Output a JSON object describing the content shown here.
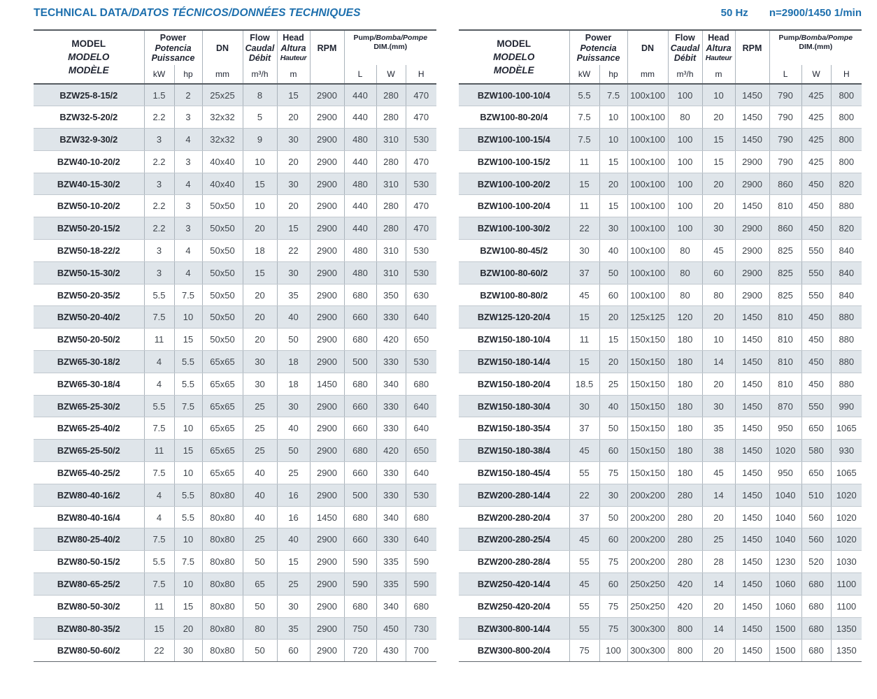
{
  "page": {
    "title_main": "TECHNICAL DATA",
    "title_alt": "/DATOS TÉCNICOS/DONNÉES TECHNIQUES",
    "frequency": "50 Hz",
    "speed": "n=2900/1450 1/min"
  },
  "colors": {
    "accent_blue": "#1d6fad",
    "row_shade": "#dfe5ea",
    "header_text": "#212633",
    "value_text": "#3e444b",
    "model_text": "#23272f",
    "grid_line": "#aab3bb",
    "row_line": "#c1c8cf",
    "heavy_line": "#565c62"
  },
  "columns": {
    "model": [
      "MODEL",
      "MODELO",
      "MODÈLE"
    ],
    "power": [
      "Power",
      "Potencia",
      "Puissance"
    ],
    "power_units": [
      "kW",
      "hp"
    ],
    "dn": "DN",
    "dn_unit": "mm",
    "flow": [
      "Flow",
      "Caudal",
      "Débit"
    ],
    "flow_unit": "m³/h",
    "head": [
      "Head",
      "Altura",
      "Hauteur"
    ],
    "head_unit": "m",
    "rpm": "RPM",
    "dim_line1_main": "Pump",
    "dim_line1_alt": "/Bomba/Pompe",
    "dim_line2": "DIM.(mm)",
    "dim_units": [
      "L",
      "W",
      "H"
    ]
  },
  "tables": [
    {
      "name": "left",
      "rows": [
        [
          "BZW25-8-15/2",
          "1.5",
          "2",
          "25x25",
          "8",
          "15",
          "2900",
          "440",
          "280",
          "470"
        ],
        [
          "BZW32-5-20/2",
          "2.2",
          "3",
          "32x32",
          "5",
          "20",
          "2900",
          "440",
          "280",
          "470"
        ],
        [
          "BZW32-9-30/2",
          "3",
          "4",
          "32x32",
          "9",
          "30",
          "2900",
          "480",
          "310",
          "530"
        ],
        [
          "BZW40-10-20/2",
          "2.2",
          "3",
          "40x40",
          "10",
          "20",
          "2900",
          "440",
          "280",
          "470"
        ],
        [
          "BZW40-15-30/2",
          "3",
          "4",
          "40x40",
          "15",
          "30",
          "2900",
          "480",
          "310",
          "530"
        ],
        [
          "BZW50-10-20/2",
          "2.2",
          "3",
          "50x50",
          "10",
          "20",
          "2900",
          "440",
          "280",
          "470"
        ],
        [
          "BZW50-20-15/2",
          "2.2",
          "3",
          "50x50",
          "20",
          "15",
          "2900",
          "440",
          "280",
          "470"
        ],
        [
          "BZW50-18-22/2",
          "3",
          "4",
          "50x50",
          "18",
          "22",
          "2900",
          "480",
          "310",
          "530"
        ],
        [
          "BZW50-15-30/2",
          "3",
          "4",
          "50x50",
          "15",
          "30",
          "2900",
          "480",
          "310",
          "530"
        ],
        [
          "BZW50-20-35/2",
          "5.5",
          "7.5",
          "50x50",
          "20",
          "35",
          "2900",
          "680",
          "350",
          "630"
        ],
        [
          "BZW50-20-40/2",
          "7.5",
          "10",
          "50x50",
          "20",
          "40",
          "2900",
          "660",
          "330",
          "640"
        ],
        [
          "BZW50-20-50/2",
          "11",
          "15",
          "50x50",
          "20",
          "50",
          "2900",
          "680",
          "420",
          "650"
        ],
        [
          "BZW65-30-18/2",
          "4",
          "5.5",
          "65x65",
          "30",
          "18",
          "2900",
          "500",
          "330",
          "530"
        ],
        [
          "BZW65-30-18/4",
          "4",
          "5.5",
          "65x65",
          "30",
          "18",
          "1450",
          "680",
          "340",
          "680"
        ],
        [
          "BZW65-25-30/2",
          "5.5",
          "7.5",
          "65x65",
          "25",
          "30",
          "2900",
          "660",
          "330",
          "640"
        ],
        [
          "BZW65-25-40/2",
          "7.5",
          "10",
          "65x65",
          "25",
          "40",
          "2900",
          "660",
          "330",
          "640"
        ],
        [
          "BZW65-25-50/2",
          "11",
          "15",
          "65x65",
          "25",
          "50",
          "2900",
          "680",
          "420",
          "650"
        ],
        [
          "BZW65-40-25/2",
          "7.5",
          "10",
          "65x65",
          "40",
          "25",
          "2900",
          "660",
          "330",
          "640"
        ],
        [
          "BZW80-40-16/2",
          "4",
          "5.5",
          "80x80",
          "40",
          "16",
          "2900",
          "500",
          "330",
          "530"
        ],
        [
          "BZW80-40-16/4",
          "4",
          "5.5",
          "80x80",
          "40",
          "16",
          "1450",
          "680",
          "340",
          "680"
        ],
        [
          "BZW80-25-40/2",
          "7.5",
          "10",
          "80x80",
          "25",
          "40",
          "2900",
          "660",
          "330",
          "640"
        ],
        [
          "BZW80-50-15/2",
          "5.5",
          "7.5",
          "80x80",
          "50",
          "15",
          "2900",
          "590",
          "335",
          "590"
        ],
        [
          "BZW80-65-25/2",
          "7.5",
          "10",
          "80x80",
          "65",
          "25",
          "2900",
          "590",
          "335",
          "590"
        ],
        [
          "BZW80-50-30/2",
          "11",
          "15",
          "80x80",
          "50",
          "30",
          "2900",
          "680",
          "340",
          "680"
        ],
        [
          "BZW80-80-35/2",
          "15",
          "20",
          "80x80",
          "80",
          "35",
          "2900",
          "750",
          "450",
          "730"
        ],
        [
          "BZW80-50-60/2",
          "22",
          "30",
          "80x80",
          "50",
          "60",
          "2900",
          "720",
          "430",
          "700"
        ]
      ]
    },
    {
      "name": "right",
      "rows": [
        [
          "BZW100-100-10/4",
          "5.5",
          "7.5",
          "100x100",
          "100",
          "10",
          "1450",
          "790",
          "425",
          "800"
        ],
        [
          "BZW100-80-20/4",
          "7.5",
          "10",
          "100x100",
          "80",
          "20",
          "1450",
          "790",
          "425",
          "800"
        ],
        [
          "BZW100-100-15/4",
          "7.5",
          "10",
          "100x100",
          "100",
          "15",
          "1450",
          "790",
          "425",
          "800"
        ],
        [
          "BZW100-100-15/2",
          "11",
          "15",
          "100x100",
          "100",
          "15",
          "2900",
          "790",
          "425",
          "800"
        ],
        [
          "BZW100-100-20/2",
          "15",
          "20",
          "100x100",
          "100",
          "20",
          "2900",
          "860",
          "450",
          "820"
        ],
        [
          "BZW100-100-20/4",
          "11",
          "15",
          "100x100",
          "100",
          "20",
          "1450",
          "810",
          "450",
          "880"
        ],
        [
          "BZW100-100-30/2",
          "22",
          "30",
          "100x100",
          "100",
          "30",
          "2900",
          "860",
          "450",
          "820"
        ],
        [
          "BZW100-80-45/2",
          "30",
          "40",
          "100x100",
          "80",
          "45",
          "2900",
          "825",
          "550",
          "840"
        ],
        [
          "BZW100-80-60/2",
          "37",
          "50",
          "100x100",
          "80",
          "60",
          "2900",
          "825",
          "550",
          "840"
        ],
        [
          "BZW100-80-80/2",
          "45",
          "60",
          "100x100",
          "80",
          "80",
          "2900",
          "825",
          "550",
          "840"
        ],
        [
          "BZW125-120-20/4",
          "15",
          "20",
          "125x125",
          "120",
          "20",
          "1450",
          "810",
          "450",
          "880"
        ],
        [
          "BZW150-180-10/4",
          "11",
          "15",
          "150x150",
          "180",
          "10",
          "1450",
          "810",
          "450",
          "880"
        ],
        [
          "BZW150-180-14/4",
          "15",
          "20",
          "150x150",
          "180",
          "14",
          "1450",
          "810",
          "450",
          "880"
        ],
        [
          "BZW150-180-20/4",
          "18.5",
          "25",
          "150x150",
          "180",
          "20",
          "1450",
          "810",
          "450",
          "880"
        ],
        [
          "BZW150-180-30/4",
          "30",
          "40",
          "150x150",
          "180",
          "30",
          "1450",
          "870",
          "550",
          "990"
        ],
        [
          "BZW150-180-35/4",
          "37",
          "50",
          "150x150",
          "180",
          "35",
          "1450",
          "950",
          "650",
          "1065"
        ],
        [
          "BZW150-180-38/4",
          "45",
          "60",
          "150x150",
          "180",
          "38",
          "1450",
          "1020",
          "580",
          "930"
        ],
        [
          "BZW150-180-45/4",
          "55",
          "75",
          "150x150",
          "180",
          "45",
          "1450",
          "950",
          "650",
          "1065"
        ],
        [
          "BZW200-280-14/4",
          "22",
          "30",
          "200x200",
          "280",
          "14",
          "1450",
          "1040",
          "510",
          "1020"
        ],
        [
          "BZW200-280-20/4",
          "37",
          "50",
          "200x200",
          "280",
          "20",
          "1450",
          "1040",
          "560",
          "1020"
        ],
        [
          "BZW200-280-25/4",
          "45",
          "60",
          "200x200",
          "280",
          "25",
          "1450",
          "1040",
          "560",
          "1020"
        ],
        [
          "BZW200-280-28/4",
          "55",
          "75",
          "200x200",
          "280",
          "28",
          "1450",
          "1230",
          "520",
          "1030"
        ],
        [
          "BZW250-420-14/4",
          "45",
          "60",
          "250x250",
          "420",
          "14",
          "1450",
          "1060",
          "680",
          "1100"
        ],
        [
          "BZW250-420-20/4",
          "55",
          "75",
          "250x250",
          "420",
          "20",
          "1450",
          "1060",
          "680",
          "1100"
        ],
        [
          "BZW300-800-14/4",
          "55",
          "75",
          "300x300",
          "800",
          "14",
          "1450",
          "1500",
          "680",
          "1350"
        ],
        [
          "BZW300-800-20/4",
          "75",
          "100",
          "300x300",
          "800",
          "20",
          "1450",
          "1500",
          "680",
          "1350"
        ]
      ]
    }
  ]
}
